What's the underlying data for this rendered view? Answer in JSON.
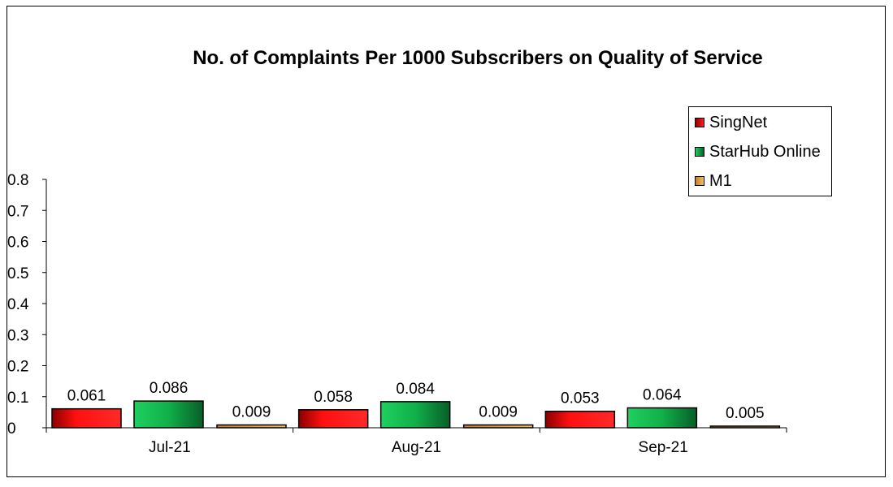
{
  "chart_data": {
    "type": "bar",
    "title": "No. of Complaints Per 1000 Subscribers on Quality of Service",
    "categories": [
      "Jul-21",
      "Aug-21",
      "Sep-21"
    ],
    "series": [
      {
        "name": "SingNet",
        "values": [
          0.061,
          0.058,
          0.053
        ],
        "color": "#e8000a"
      },
      {
        "name": "StarHub Online",
        "values": [
          0.086,
          0.084,
          0.064
        ],
        "color": "#1db954"
      },
      {
        "name": "M1",
        "values": [
          0.009,
          0.009,
          0.005
        ],
        "color": "#e6a817"
      }
    ],
    "data_labels": [
      [
        "0.061",
        "0.058",
        "0.053"
      ],
      [
        "0.086",
        "0.084",
        "0.064"
      ],
      [
        "0.009",
        "0.009",
        "0.005"
      ]
    ],
    "y_ticks": [
      "0",
      "0.1",
      "0.2",
      "0.3",
      "0.4",
      "0.5",
      "0.6",
      "0.7",
      "0.8"
    ],
    "ylim": [
      0,
      0.8
    ],
    "xlabel": "",
    "ylabel": "",
    "grid": false,
    "legend_position": "top-right"
  }
}
